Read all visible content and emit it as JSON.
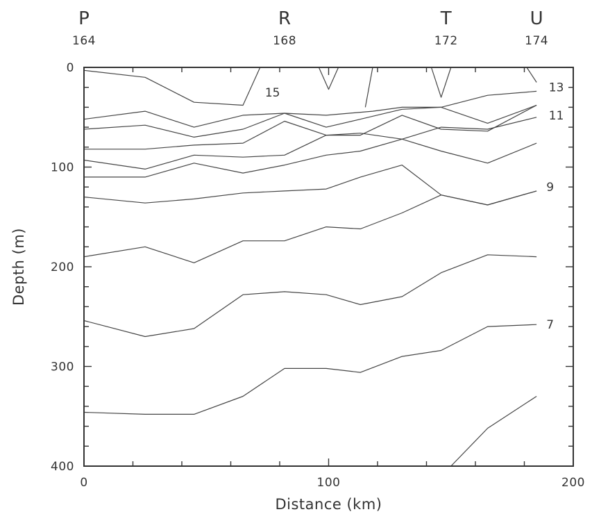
{
  "chart_data": {
    "type": "line",
    "title": "",
    "xlabel": "Distance (km)",
    "ylabel": "Depth (m)",
    "xlim": [
      0,
      200
    ],
    "ylim": [
      400,
      0
    ],
    "y_inverted": true,
    "grid": false,
    "x_tick_labels": [
      "0",
      "100",
      "200"
    ],
    "y_tick_labels": [
      "0",
      "100",
      "200",
      "300",
      "400"
    ],
    "stations": [
      {
        "letter": "P",
        "number": "164",
        "x": 0
      },
      {
        "letter": "R",
        "number": "168",
        "x": 82
      },
      {
        "letter": "T",
        "number": "172",
        "x": 148
      },
      {
        "letter": "U",
        "number": "174",
        "x": 185
      }
    ],
    "contour_labels": [
      {
        "text": "15",
        "x": 74,
        "y": 25
      },
      {
        "text": "13",
        "x": 190,
        "y": 20
      },
      {
        "text": "11",
        "x": 190,
        "y": 48
      },
      {
        "text": "9",
        "x": 189,
        "y": 120
      },
      {
        "text": "7",
        "x": 189,
        "y": 258
      }
    ],
    "series": [
      {
        "x": [
          0,
          25,
          45,
          65,
          72
        ],
        "y": [
          3,
          10,
          35,
          38,
          0
        ]
      },
      {
        "x": [
          96,
          100,
          104
        ],
        "y": [
          0,
          22,
          0
        ]
      },
      {
        "x": [
          142,
          146,
          150
        ],
        "y": [
          0,
          30,
          0
        ]
      },
      {
        "x": [
          181,
          185
        ],
        "y": [
          0,
          15
        ]
      },
      {
        "x": [
          0,
          25,
          45,
          65,
          82,
          99,
          118,
          130,
          146,
          165,
          185
        ],
        "y": [
          52,
          44,
          60,
          48,
          46,
          48,
          44,
          40,
          40,
          56,
          38
        ]
      },
      {
        "x": [
          115,
          118
        ],
        "y": [
          40,
          0
        ]
      },
      {
        "x": [
          0,
          25,
          45,
          65,
          82,
          99,
          113,
          130,
          146,
          165,
          185
        ],
        "y": [
          62,
          58,
          70,
          62,
          46,
          60,
          52,
          42,
          40,
          28,
          24
        ]
      },
      {
        "x": [
          0,
          25,
          45,
          65,
          82,
          99,
          113,
          130,
          146,
          165,
          185
        ],
        "y": [
          82,
          82,
          78,
          76,
          54,
          68,
          68,
          48,
          62,
          64,
          38
        ]
      },
      {
        "x": [
          0,
          25,
          45,
          65,
          82,
          99,
          113,
          130,
          146,
          165,
          185
        ],
        "y": [
          93,
          102,
          88,
          90,
          88,
          68,
          66,
          72,
          60,
          62,
          50
        ]
      },
      {
        "x": [
          0,
          25,
          45,
          65,
          82,
          99,
          113,
          130,
          146,
          165,
          185
        ],
        "y": [
          110,
          110,
          96,
          106,
          98,
          88,
          84,
          72,
          84,
          96,
          76
        ]
      },
      {
        "x": [
          0,
          25,
          45,
          65,
          82,
          99,
          113,
          130,
          146,
          165,
          185
        ],
        "y": [
          130,
          136,
          132,
          126,
          124,
          122,
          110,
          98,
          128,
          138,
          124
        ]
      },
      {
        "x": [
          0,
          25,
          45,
          65,
          82,
          99,
          113,
          130,
          146,
          165,
          185
        ],
        "y": [
          190,
          180,
          196,
          174,
          174,
          160,
          162,
          146,
          128,
          138,
          124
        ]
      },
      {
        "x": [
          0,
          25,
          45,
          65,
          82,
          99,
          113,
          130,
          146,
          165,
          185
        ],
        "y": [
          254,
          270,
          262,
          228,
          225,
          228,
          238,
          230,
          206,
          188,
          190
        ]
      },
      {
        "x": [
          0,
          25,
          45,
          65,
          82,
          99,
          113,
          130,
          146,
          165,
          185
        ],
        "y": [
          346,
          348,
          348,
          330,
          302,
          302,
          306,
          290,
          284,
          260,
          258
        ]
      },
      {
        "x": [
          150,
          165,
          185
        ],
        "y": [
          400,
          362,
          330
        ]
      }
    ]
  }
}
